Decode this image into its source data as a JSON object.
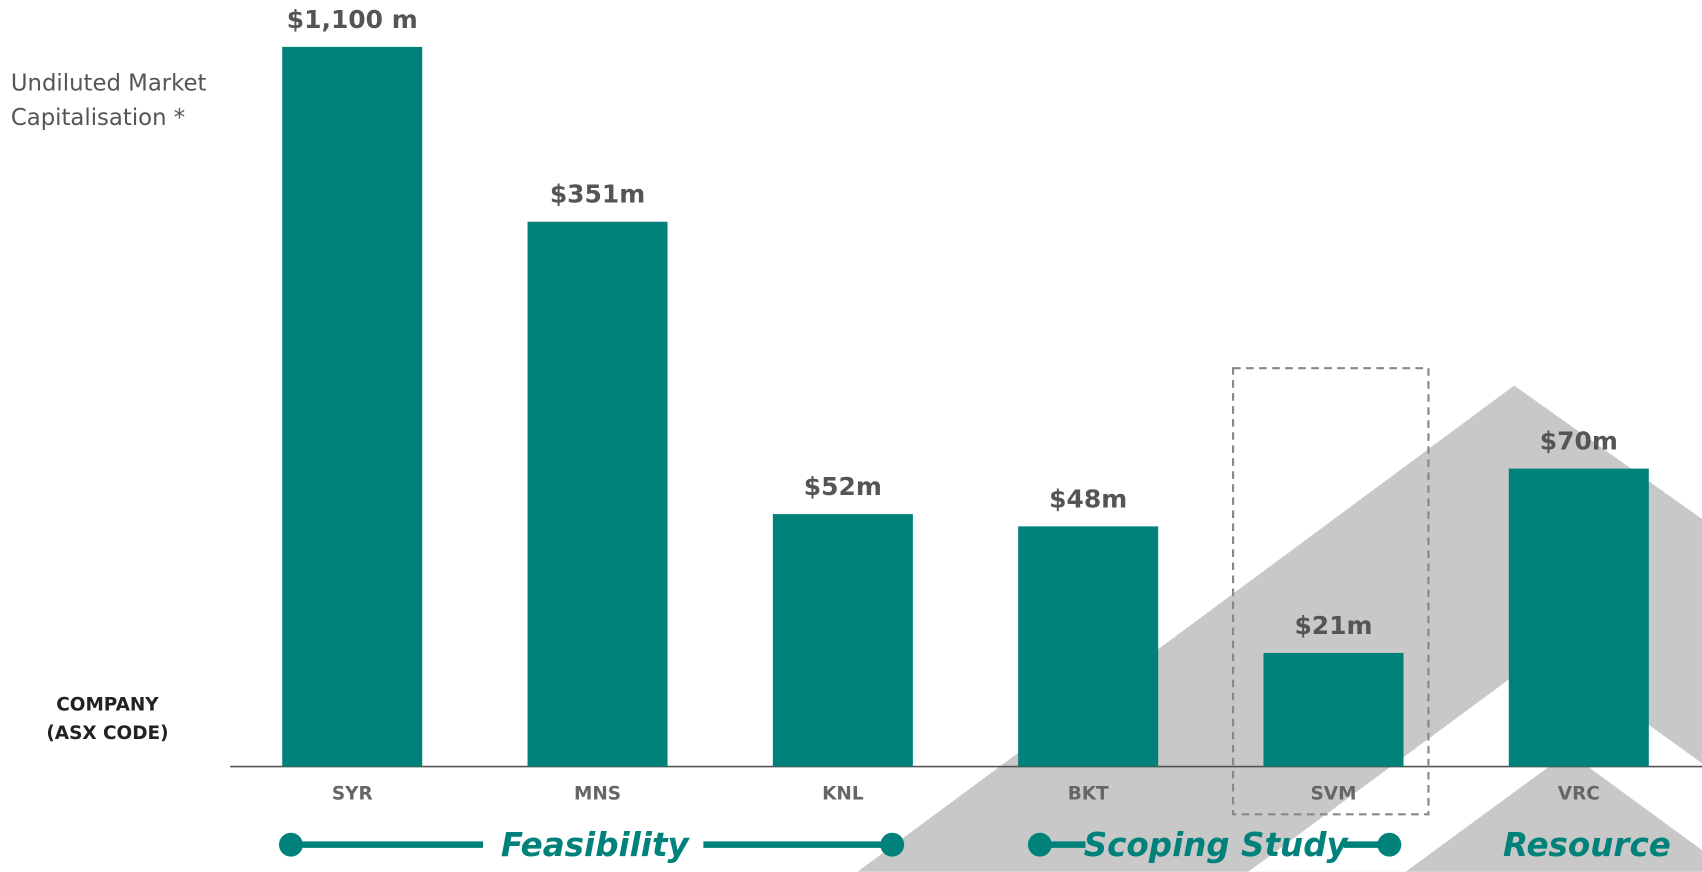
{
  "chart_data": {
    "type": "bar",
    "y_label": [
      "Undiluted Market",
      "Capitalisation *"
    ],
    "x_label": [
      "COMPANY",
      "(ASX CODE)"
    ],
    "categories": [
      "SYR",
      "MNS",
      "KNL",
      "BKT",
      "SVM",
      "VRC"
    ],
    "values": [
      1100,
      351,
      52,
      48,
      21,
      70
    ],
    "value_labels": [
      "$1,100 m",
      "$351m",
      "$52m",
      "$48m",
      "$21m",
      "$70m"
    ],
    "color": "#00827a",
    "log_scale": true,
    "ylim": [
      10,
      1100
    ],
    "stages": [
      "Feasibility",
      "Scoping Study",
      "Resource"
    ]
  }
}
